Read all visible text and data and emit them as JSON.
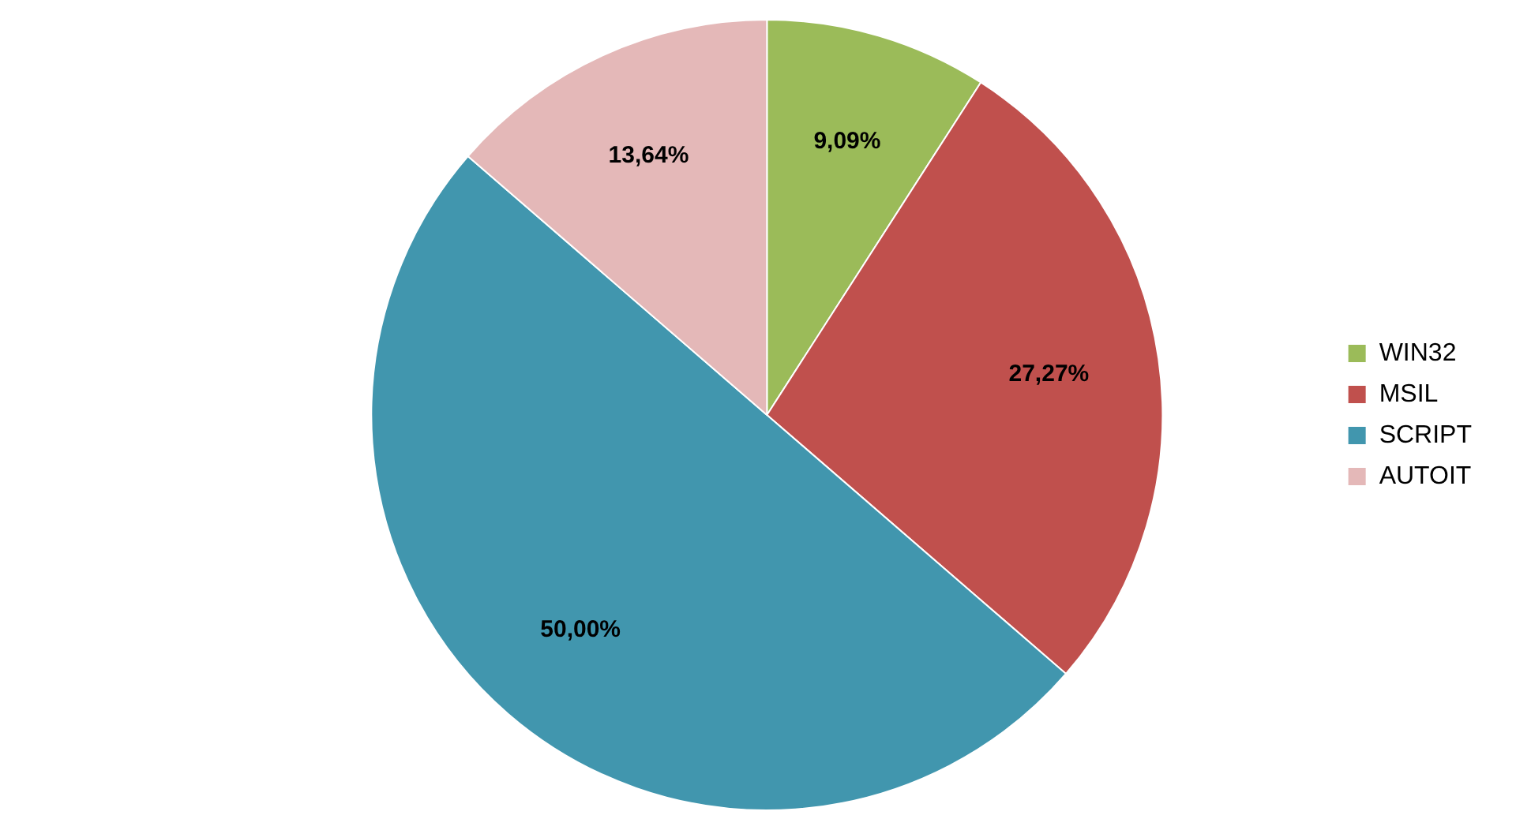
{
  "chart_data": {
    "type": "pie",
    "categories": [
      "WIN32",
      "MSIL",
      "SCRIPT",
      "AUTOIT"
    ],
    "values": [
      9.09,
      27.27,
      50.0,
      13.64
    ],
    "value_labels": [
      "9,09%",
      "27,27%",
      "50,00%",
      "13,64%"
    ],
    "colors": [
      "#9bbb59",
      "#c0504d",
      "#4196ae",
      "#e4b8b8"
    ],
    "legend": "right"
  }
}
